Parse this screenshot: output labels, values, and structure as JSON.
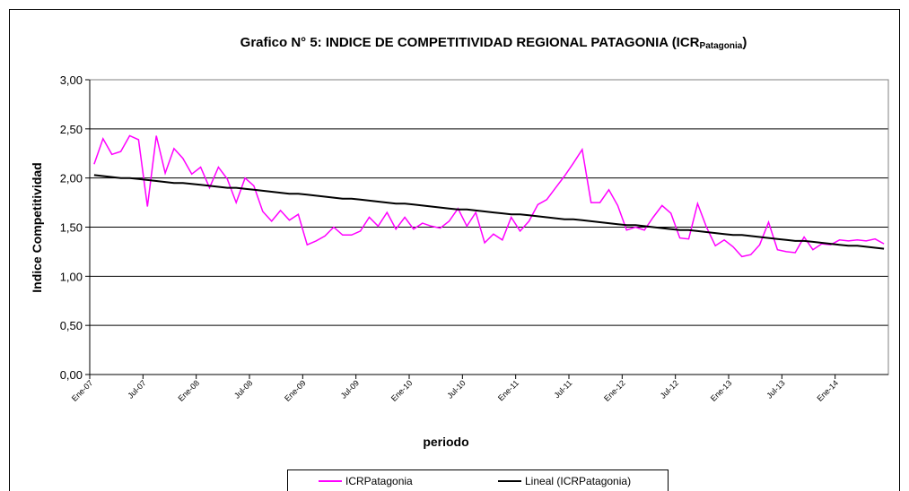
{
  "chart_data": {
    "type": "line",
    "title": "Grafico N° 5: INDICE DE COMPETITIVIDAD REGIONAL PATAGONIA (ICR",
    "title_subscript": "Patagonia",
    "title_end": ")",
    "x_label": "periodo",
    "y_label": "Indice Competitividad",
    "categories": [
      "Ene-07",
      null,
      null,
      null,
      null,
      null,
      "Jul-07",
      null,
      null,
      null,
      null,
      null,
      "Ene-08",
      null,
      null,
      null,
      null,
      null,
      "Jul-08",
      null,
      null,
      null,
      null,
      null,
      "Ene-09",
      null,
      null,
      null,
      null,
      null,
      "Jul-09",
      null,
      null,
      null,
      null,
      null,
      "Ene-10",
      null,
      null,
      null,
      null,
      null,
      "Jul-10",
      null,
      null,
      null,
      null,
      null,
      "Ene-11",
      null,
      null,
      null,
      null,
      null,
      "Jul-11",
      null,
      null,
      null,
      null,
      null,
      "Ene-12",
      null,
      null,
      null,
      null,
      null,
      "Jul-12",
      null,
      null,
      null,
      null,
      null,
      "Ene-13",
      null,
      null,
      null,
      null,
      null,
      "Jul-13",
      null,
      null,
      null,
      null,
      null,
      "Ene-14",
      null,
      null,
      null,
      null,
      null
    ],
    "series": [
      {
        "name": "ICRPatagonia",
        "color": "#ff00ff",
        "values": [
          2.14,
          2.4,
          2.24,
          2.27,
          2.43,
          2.39,
          1.71,
          2.43,
          2.05,
          2.3,
          2.2,
          2.04,
          2.11,
          1.9,
          2.11,
          1.99,
          1.75,
          2.0,
          1.92,
          1.66,
          1.56,
          1.67,
          1.57,
          1.63,
          1.32,
          1.36,
          1.41,
          1.5,
          1.42,
          1.42,
          1.46,
          1.6,
          1.51,
          1.65,
          1.48,
          1.6,
          1.48,
          1.54,
          1.51,
          1.49,
          1.56,
          1.69,
          1.51,
          1.65,
          1.34,
          1.43,
          1.37,
          1.6,
          1.46,
          1.56,
          1.73,
          1.78,
          1.9,
          2.02,
          2.15,
          2.29,
          1.75,
          1.75,
          1.88,
          1.72,
          1.47,
          1.5,
          1.47,
          1.6,
          1.72,
          1.64,
          1.39,
          1.38,
          1.74,
          1.5,
          1.31,
          1.37,
          1.3,
          1.2,
          1.22,
          1.32,
          1.55,
          1.27,
          1.25,
          1.24,
          1.4,
          1.27,
          1.33,
          1.32,
          1.37,
          1.36,
          1.37,
          1.36,
          1.38,
          1.33
        ]
      },
      {
        "name": "Lineal (ICRPatagonia)",
        "color": "#000000",
        "values": [
          2.03,
          2.02,
          2.01,
          2.0,
          2.0,
          1.99,
          1.98,
          1.97,
          1.96,
          1.95,
          1.95,
          1.94,
          1.93,
          1.92,
          1.91,
          1.9,
          1.9,
          1.89,
          1.88,
          1.87,
          1.86,
          1.85,
          1.84,
          1.84,
          1.83,
          1.82,
          1.81,
          1.8,
          1.79,
          1.79,
          1.78,
          1.77,
          1.76,
          1.75,
          1.74,
          1.74,
          1.73,
          1.72,
          1.71,
          1.7,
          1.69,
          1.68,
          1.68,
          1.67,
          1.66,
          1.65,
          1.64,
          1.63,
          1.63,
          1.62,
          1.61,
          1.6,
          1.59,
          1.58,
          1.58,
          1.57,
          1.56,
          1.55,
          1.54,
          1.53,
          1.52,
          1.52,
          1.51,
          1.5,
          1.49,
          1.48,
          1.47,
          1.47,
          1.46,
          1.45,
          1.44,
          1.43,
          1.42,
          1.42,
          1.41,
          1.4,
          1.39,
          1.38,
          1.37,
          1.36,
          1.36,
          1.35,
          1.34,
          1.33,
          1.32,
          1.31,
          1.31,
          1.3,
          1.29,
          1.28
        ]
      }
    ],
    "ylim": [
      0,
      3
    ],
    "yticks": [
      {
        "value": 0,
        "label": "0,00"
      },
      {
        "value": 0.5,
        "label": "0,50"
      },
      {
        "value": 1,
        "label": "1,00"
      },
      {
        "value": 1.5,
        "label": "1,50"
      },
      {
        "value": 2,
        "label": "2,00"
      },
      {
        "value": 2.5,
        "label": "2,50"
      },
      {
        "value": 3,
        "label": "3,00"
      }
    ],
    "grid": true,
    "legend": "bottom"
  }
}
